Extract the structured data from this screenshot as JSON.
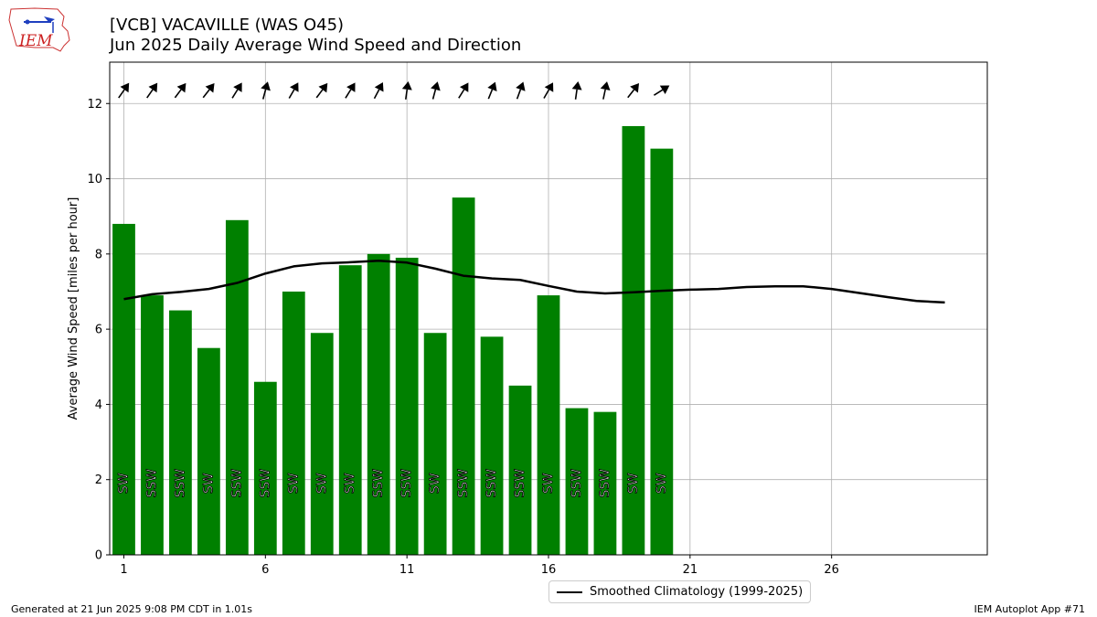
{
  "title": "[VCB] VACAVILLE (WAS O45)",
  "subtitle": "Jun 2025 Daily Average Wind Speed and Direction",
  "footer_left": "Generated at 21 Jun 2025 9:08 PM CDT in 1.01s",
  "footer_right": "IEM Autoplot App #71",
  "logo_text": "IEM",
  "chart_data": {
    "type": "bar",
    "ylabel": "Average Wind Speed [miles per hour]",
    "xlabel": "",
    "xlim": [
      0.5,
      31.5
    ],
    "ylim": [
      0,
      13.1
    ],
    "xticks": [
      1,
      6,
      11,
      16,
      21,
      26
    ],
    "yticks": [
      0,
      2,
      4,
      6,
      8,
      10,
      12
    ],
    "grid": true,
    "bar_color": "#008000",
    "days": [
      1,
      2,
      3,
      4,
      5,
      6,
      7,
      8,
      9,
      10,
      11,
      12,
      13,
      14,
      15,
      16,
      17,
      18,
      19,
      20
    ],
    "values": [
      8.8,
      6.9,
      6.5,
      5.5,
      8.9,
      4.6,
      7.0,
      5.9,
      7.7,
      8.0,
      7.9,
      5.9,
      9.5,
      5.8,
      4.5,
      6.9,
      3.9,
      3.8,
      11.4,
      10.8
    ],
    "directions": [
      "SW",
      "SSW",
      "SSW",
      "SW",
      "SSW",
      "SSW",
      "SW",
      "SW",
      "SW",
      "SSW",
      "SSW",
      "SW",
      "SSW",
      "SSW",
      "SSW",
      "SW",
      "SSW",
      "SSW",
      "SW",
      "SW"
    ],
    "arrow_angles_deg": [
      35,
      35,
      37,
      38,
      32,
      15,
      30,
      37,
      32,
      28,
      8,
      15,
      32,
      22,
      20,
      30,
      8,
      12,
      38,
      58
    ],
    "climatology": {
      "name": "Smoothed Climatology (1999-2025)",
      "color": "#000000",
      "x": [
        1,
        2,
        3,
        4,
        5,
        6,
        7,
        8,
        9,
        10,
        11,
        12,
        13,
        14,
        15,
        16,
        17,
        18,
        19,
        20,
        21,
        22,
        23,
        24,
        25,
        26,
        27,
        28,
        29,
        30
      ],
      "y": [
        6.8,
        6.93,
        6.99,
        7.07,
        7.23,
        7.48,
        7.67,
        7.75,
        7.78,
        7.82,
        7.77,
        7.61,
        7.42,
        7.35,
        7.31,
        7.15,
        7.0,
        6.95,
        6.98,
        7.02,
        7.05,
        7.07,
        7.12,
        7.14,
        7.14,
        7.07,
        6.96,
        6.85,
        6.75,
        6.71
      ]
    },
    "legend_position": "below"
  }
}
